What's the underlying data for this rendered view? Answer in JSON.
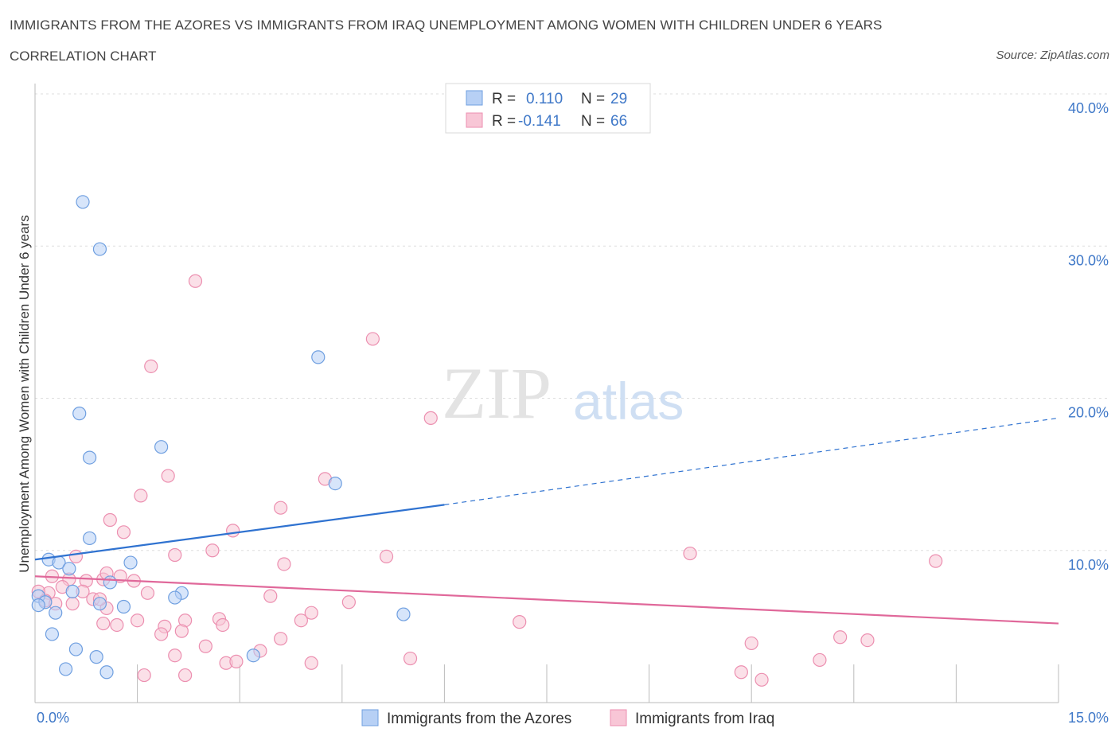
{
  "title": "IMMIGRANTS FROM THE AZORES VS IMMIGRANTS FROM IRAQ UNEMPLOYMENT AMONG WOMEN WITH CHILDREN UNDER 6 YEARS",
  "subtitle": "CORRELATION CHART",
  "source": "Source: ZipAtlas.com",
  "watermark": {
    "zip": "ZIP",
    "atlas": "atlas"
  },
  "colors": {
    "azores_fill": "#b7d0f5",
    "azores_stroke": "#6f9fe0",
    "azores_line": "#2f72d0",
    "iraq_fill": "#f8c6d6",
    "iraq_stroke": "#ec8fb0",
    "iraq_line": "#e0689a",
    "tick": "#3f78c8",
    "grid": "#dddddd"
  },
  "legend": {
    "azores": {
      "r_label": "R =",
      "r_value": "0.110",
      "n_label": "N =",
      "n_value": "29"
    },
    "iraq": {
      "r_label": "R =",
      "r_value": "-0.141",
      "n_label": "N =",
      "n_value": "66"
    }
  },
  "chart_data": {
    "type": "scatter",
    "xlabel": "",
    "ylabel": "Unemployment Among Women with Children Under 6 years",
    "xlim": [
      0,
      15
    ],
    "ylim": [
      0,
      40
    ],
    "x_tick_labels": [
      "0.0%",
      "15.0%"
    ],
    "y_ticks": [
      10,
      20,
      30,
      40
    ],
    "y_tick_labels": [
      "10.0%",
      "20.0%",
      "30.0%",
      "40.0%"
    ],
    "grid": true,
    "series": [
      {
        "name": "Immigrants from the Azores",
        "r": 0.11,
        "n": 29,
        "trend": {
          "x0": 0,
          "y0": 9.4,
          "x1": 6.0,
          "y1": 13.0,
          "x_dash_end": 15,
          "y_dash_end": 18.7
        },
        "points": [
          [
            0.7,
            32.9
          ],
          [
            0.95,
            29.8
          ],
          [
            0.65,
            19.0
          ],
          [
            0.8,
            16.1
          ],
          [
            1.85,
            16.8
          ],
          [
            4.15,
            22.7
          ],
          [
            4.4,
            14.4
          ],
          [
            0.8,
            10.8
          ],
          [
            0.2,
            9.4
          ],
          [
            0.35,
            9.2
          ],
          [
            0.5,
            8.8
          ],
          [
            1.4,
            9.2
          ],
          [
            1.1,
            7.9
          ],
          [
            0.55,
            7.3
          ],
          [
            2.15,
            7.2
          ],
          [
            2.05,
            6.9
          ],
          [
            0.05,
            7.0
          ],
          [
            0.15,
            6.6
          ],
          [
            0.95,
            6.5
          ],
          [
            1.3,
            6.3
          ],
          [
            0.3,
            5.9
          ],
          [
            5.4,
            5.8
          ],
          [
            0.25,
            4.5
          ],
          [
            0.6,
            3.5
          ],
          [
            0.9,
            3.0
          ],
          [
            3.2,
            3.1
          ],
          [
            0.45,
            2.2
          ],
          [
            1.05,
            2.0
          ],
          [
            0.05,
            6.4
          ]
        ]
      },
      {
        "name": "Immigrants from Iraq",
        "r": -0.141,
        "n": 66,
        "trend": {
          "x0": 0,
          "y0": 8.3,
          "x1": 15,
          "y1": 5.2
        },
        "points": [
          [
            2.35,
            27.7
          ],
          [
            1.7,
            22.1
          ],
          [
            4.95,
            23.9
          ],
          [
            5.8,
            18.7
          ],
          [
            1.95,
            14.9
          ],
          [
            1.55,
            13.6
          ],
          [
            4.25,
            14.7
          ],
          [
            1.1,
            12.0
          ],
          [
            3.6,
            12.8
          ],
          [
            1.3,
            11.2
          ],
          [
            2.9,
            11.3
          ],
          [
            2.6,
            10.0
          ],
          [
            2.05,
            9.7
          ],
          [
            0.6,
            9.6
          ],
          [
            5.15,
            9.6
          ],
          [
            3.65,
            9.1
          ],
          [
            9.6,
            9.8
          ],
          [
            13.2,
            9.3
          ],
          [
            0.25,
            8.3
          ],
          [
            0.5,
            8.1
          ],
          [
            0.75,
            8.0
          ],
          [
            1.0,
            8.1
          ],
          [
            1.05,
            8.5
          ],
          [
            1.25,
            8.3
          ],
          [
            1.45,
            8.0
          ],
          [
            0.4,
            7.6
          ],
          [
            0.7,
            7.3
          ],
          [
            0.2,
            7.2
          ],
          [
            0.85,
            6.8
          ],
          [
            1.65,
            7.2
          ],
          [
            3.45,
            7.0
          ],
          [
            4.6,
            6.6
          ],
          [
            0.05,
            7.3
          ],
          [
            0.15,
            6.7
          ],
          [
            0.3,
            6.5
          ],
          [
            1.05,
            6.2
          ],
          [
            0.95,
            6.8
          ],
          [
            0.55,
            6.5
          ],
          [
            4.05,
            5.9
          ],
          [
            3.9,
            5.4
          ],
          [
            1.5,
            5.4
          ],
          [
            1.2,
            5.1
          ],
          [
            2.2,
            5.4
          ],
          [
            2.7,
            5.5
          ],
          [
            2.75,
            5.1
          ],
          [
            1.9,
            5.0
          ],
          [
            1.85,
            4.5
          ],
          [
            2.15,
            4.7
          ],
          [
            7.1,
            5.3
          ],
          [
            1.0,
            5.2
          ],
          [
            3.6,
            4.2
          ],
          [
            2.5,
            3.7
          ],
          [
            3.3,
            3.4
          ],
          [
            2.05,
            3.1
          ],
          [
            2.8,
            2.6
          ],
          [
            2.95,
            2.7
          ],
          [
            4.05,
            2.6
          ],
          [
            5.5,
            2.9
          ],
          [
            1.6,
            1.8
          ],
          [
            2.2,
            1.8
          ],
          [
            10.5,
            3.9
          ],
          [
            11.8,
            4.3
          ],
          [
            12.2,
            4.1
          ],
          [
            11.5,
            2.8
          ],
          [
            10.35,
            2.0
          ],
          [
            10.65,
            1.5
          ]
        ]
      }
    ]
  },
  "bottom_legend": {
    "azores": "Immigrants from the Azores",
    "iraq": "Immigrants from Iraq"
  }
}
